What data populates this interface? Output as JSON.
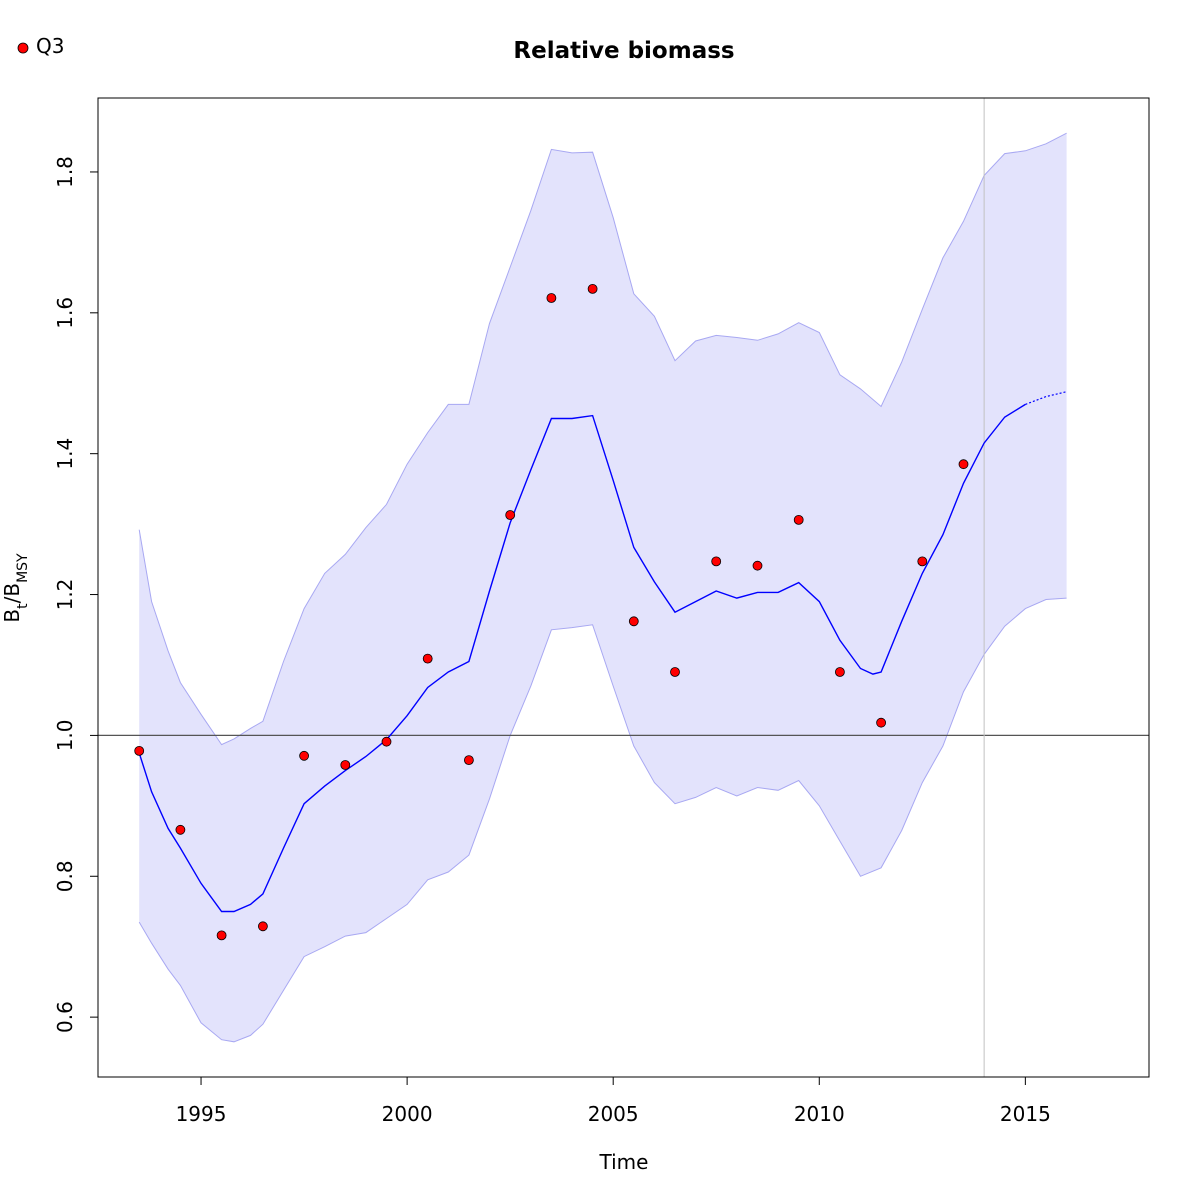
{
  "chart_data": {
    "type": "line",
    "title": "Relative biomass",
    "xlabel": "Time",
    "ylabel": {
      "main": "B",
      "sub1": "t",
      "sep": "/B",
      "sub2": "MSY"
    },
    "xlim": [
      1992.5,
      2018
    ],
    "ylim": [
      0.515,
      1.905
    ],
    "xticks": [
      1995,
      2000,
      2005,
      2010,
      2015
    ],
    "yticks": [
      0.6,
      0.8,
      1.0,
      1.2,
      1.4,
      1.6,
      1.8
    ],
    "grid": false,
    "reference_hline": 1.0,
    "reference_vline": 2014,
    "legend": {
      "position": "top-left",
      "entries": [
        "Q3"
      ]
    },
    "colors": {
      "estimate_line": "#0000ff",
      "ci_fill": "#e3e3fc",
      "ci_edge": "#a8a8f2",
      "points": "#ff0000",
      "reference_line": "#555555",
      "vline": "#c2c2c2"
    },
    "observations": {
      "name": "Q3",
      "x": [
        1993.5,
        1994.5,
        1995.5,
        1996.5,
        1997.5,
        1998.5,
        1999.5,
        2000.5,
        2001.5,
        2002.5,
        2003.5,
        2004.5,
        2005.5,
        2006.5,
        2007.5,
        2008.5,
        2009.5,
        2010.5,
        2011.5,
        2012.5,
        2013.5
      ],
      "y": [
        0.978,
        0.866,
        0.716,
        0.729,
        0.971,
        0.958,
        0.991,
        1.109,
        0.965,
        1.313,
        1.621,
        1.634,
        1.162,
        1.09,
        1.247,
        1.241,
        1.306,
        1.09,
        1.018,
        1.247,
        1.385
      ]
    },
    "estimate": {
      "x": [
        1993.5,
        1993.8,
        1994.2,
        1994.5,
        1995.0,
        1995.5,
        1995.8,
        1996.2,
        1996.5,
        1997.0,
        1997.5,
        1998.0,
        1998.5,
        1999.0,
        1999.5,
        2000.0,
        2000.5,
        2001.0,
        2001.5,
        2002.0,
        2002.5,
        2003.0,
        2003.5,
        2004.0,
        2004.5,
        2005.0,
        2005.5,
        2006.0,
        2006.5,
        2007.0,
        2007.5,
        2008.0,
        2008.5,
        2009.0,
        2009.5,
        2010.0,
        2010.5,
        2011.0,
        2011.3,
        2011.5,
        2012.0,
        2012.5,
        2013.0,
        2013.5,
        2014.0,
        2014.5,
        2015.0
      ],
      "y": [
        0.975,
        0.92,
        0.868,
        0.84,
        0.79,
        0.75,
        0.75,
        0.76,
        0.775,
        0.84,
        0.903,
        0.928,
        0.95,
        0.97,
        0.994,
        1.028,
        1.068,
        1.09,
        1.105,
        1.205,
        1.302,
        1.377,
        1.45,
        1.45,
        1.454,
        1.362,
        1.267,
        1.218,
        1.175,
        1.19,
        1.205,
        1.195,
        1.203,
        1.203,
        1.217,
        1.19,
        1.135,
        1.095,
        1.087,
        1.09,
        1.162,
        1.23,
        1.285,
        1.358,
        1.415,
        1.452,
        1.47
      ]
    },
    "projection": {
      "x": [
        2015.0,
        2015.5,
        2016.0
      ],
      "y": [
        1.47,
        1.481,
        1.488
      ]
    },
    "ci_upper": {
      "x": [
        1993.5,
        1993.8,
        1994.2,
        1994.5,
        1995.0,
        1995.5,
        1995.8,
        1996.2,
        1996.5,
        1997.0,
        1997.5,
        1998.0,
        1998.5,
        1999.0,
        1999.5,
        2000.0,
        2000.5,
        2001.0,
        2001.5,
        2002.0,
        2002.5,
        2003.0,
        2003.5,
        2004.0,
        2004.5,
        2005.0,
        2005.5,
        2006.0,
        2006.5,
        2007.0,
        2007.5,
        2008.0,
        2008.5,
        2009.0,
        2009.5,
        2010.0,
        2010.5,
        2011.0,
        2011.5,
        2012.0,
        2012.5,
        2013.0,
        2013.5,
        2014.0,
        2014.5,
        2015.0,
        2015.5,
        2016.0
      ],
      "y": [
        1.292,
        1.19,
        1.12,
        1.075,
        1.03,
        0.987,
        0.995,
        1.01,
        1.02,
        1.105,
        1.18,
        1.23,
        1.257,
        1.295,
        1.328,
        1.385,
        1.43,
        1.47,
        1.47,
        1.585,
        1.665,
        1.745,
        1.832,
        1.827,
        1.828,
        1.735,
        1.627,
        1.595,
        1.532,
        1.56,
        1.568,
        1.565,
        1.561,
        1.57,
        1.586,
        1.572,
        1.512,
        1.492,
        1.467,
        1.53,
        1.605,
        1.678,
        1.73,
        1.795,
        1.826,
        1.83,
        1.84,
        1.855
      ]
    },
    "ci_lower": {
      "x": [
        1993.5,
        1993.8,
        1994.2,
        1994.5,
        1995.0,
        1995.5,
        1995.8,
        1996.2,
        1996.5,
        1997.0,
        1997.5,
        1998.0,
        1998.5,
        1999.0,
        1999.5,
        2000.0,
        2000.5,
        2001.0,
        2001.5,
        2002.0,
        2002.5,
        2003.0,
        2003.5,
        2004.0,
        2004.5,
        2005.0,
        2005.5,
        2006.0,
        2006.5,
        2007.0,
        2007.5,
        2008.0,
        2008.5,
        2009.0,
        2009.5,
        2010.0,
        2010.5,
        2011.0,
        2011.5,
        2012.0,
        2012.5,
        2013.0,
        2013.5,
        2014.0,
        2014.5,
        2015.0,
        2015.5,
        2016.0
      ],
      "y": [
        0.735,
        0.705,
        0.668,
        0.645,
        0.592,
        0.568,
        0.565,
        0.574,
        0.59,
        0.638,
        0.686,
        0.7,
        0.715,
        0.72,
        0.74,
        0.76,
        0.795,
        0.806,
        0.83,
        0.91,
        1.0,
        1.07,
        1.15,
        1.153,
        1.157,
        1.07,
        0.985,
        0.933,
        0.903,
        0.912,
        0.926,
        0.914,
        0.926,
        0.922,
        0.936,
        0.9,
        0.85,
        0.8,
        0.812,
        0.865,
        0.933,
        0.985,
        1.062,
        1.115,
        1.155,
        1.18,
        1.193,
        1.195
      ]
    }
  }
}
